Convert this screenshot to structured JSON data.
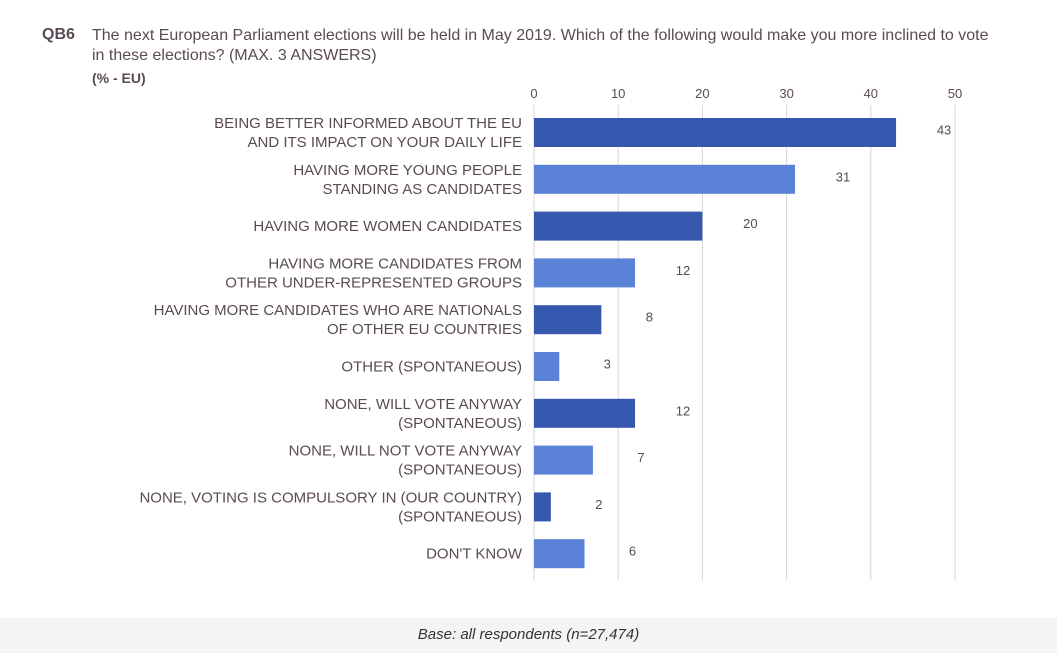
{
  "header": {
    "code": "QB6",
    "question": "The next European Parliament elections will be held in May 2019. Which of the following would make you more inclined to vote in these elections? (MAX. 3 ANSWERS)",
    "unit": "(% - EU)"
  },
  "chart_data": {
    "type": "bar",
    "orientation": "horizontal",
    "categories": [
      [
        "BEING BETTER INFORMED ABOUT THE EU",
        "AND ITS IMPACT ON YOUR DAILY LIFE"
      ],
      [
        "HAVING MORE YOUNG PEOPLE",
        "STANDING AS CANDIDATES"
      ],
      [
        "HAVING MORE WOMEN CANDIDATES"
      ],
      [
        "HAVING MORE CANDIDATES FROM",
        "OTHER UNDER-REPRESENTED GROUPS"
      ],
      [
        "HAVING MORE CANDIDATES WHO ARE NATIONALS",
        "OF OTHER EU COUNTRIES"
      ],
      [
        "OTHER (SPONTANEOUS)"
      ],
      [
        "NONE, WILL VOTE ANYWAY",
        "(SPONTANEOUS)"
      ],
      [
        "NONE, WILL NOT VOTE ANYWAY",
        "(SPONTANEOUS)"
      ],
      [
        "NONE, VOTING IS COMPULSORY IN (OUR COUNTRY)",
        "(SPONTANEOUS)"
      ],
      [
        "DON'T KNOW"
      ]
    ],
    "values": [
      43,
      31,
      20,
      12,
      8,
      3,
      12,
      7,
      2,
      6
    ],
    "xlim": [
      0,
      50
    ],
    "ticks": [
      0,
      10,
      20,
      30,
      40,
      50
    ],
    "grid": true,
    "axis_position": "top",
    "colors": {
      "dark": "#3557ad",
      "light": "#5a82d6",
      "grid": "#d6d6d6"
    },
    "bar_color_pattern": [
      "dark",
      "light",
      "dark",
      "light",
      "dark",
      "light",
      "dark",
      "light",
      "dark",
      "light"
    ]
  },
  "footer": {
    "base": "Base: all respondents (n=27,474)"
  }
}
